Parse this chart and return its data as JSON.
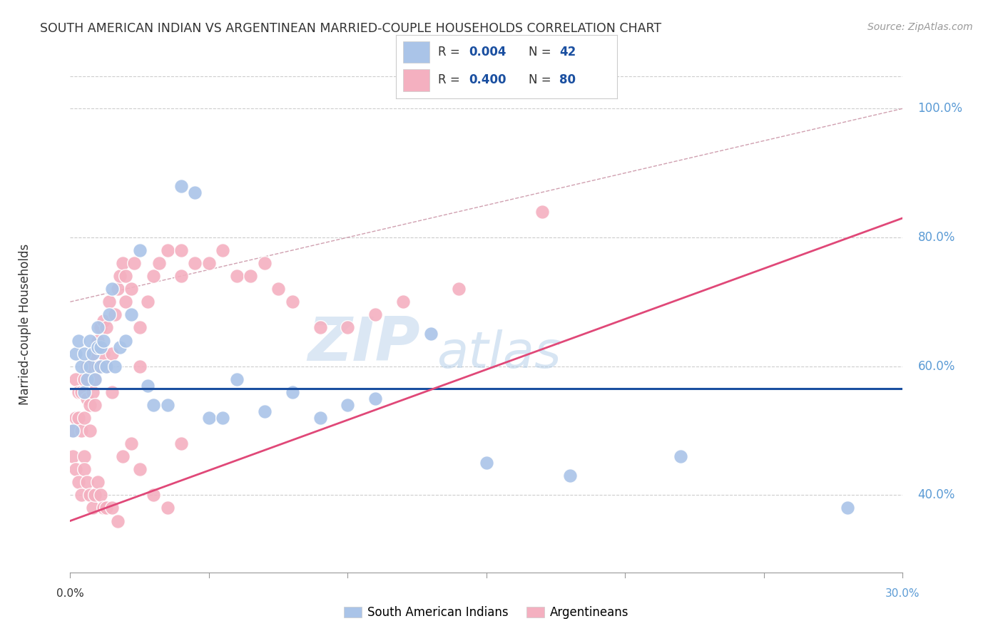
{
  "title": "SOUTH AMERICAN INDIAN VS ARGENTINEAN MARRIED-COUPLE HOUSEHOLDS CORRELATION CHART",
  "source": "Source: ZipAtlas.com",
  "ylabel": "Married-couple Households",
  "watermark_zip": "ZIP",
  "watermark_atlas": "atlas",
  "blue_color": "#aac4e8",
  "pink_color": "#f4b0c0",
  "blue_line_color": "#1a4fa0",
  "pink_line_color": "#e04878",
  "diag_line_color": "#d0a0b0",
  "x_min": 0.0,
  "x_max": 0.3,
  "y_min": 0.28,
  "y_max": 1.05,
  "yticks": [
    0.4,
    0.6,
    0.8,
    1.0
  ],
  "xtick_labels_pos": [
    0.0,
    0.05,
    0.1,
    0.15,
    0.2,
    0.25,
    0.3
  ],
  "blue_line_y": 0.565,
  "pink_line_x": [
    0.0,
    0.3
  ],
  "pink_line_y": [
    0.36,
    0.83
  ],
  "diag_line_x": [
    0.0,
    0.3
  ],
  "diag_line_y": [
    0.7,
    1.0
  ],
  "blue_scatter_x": [
    0.001,
    0.002,
    0.003,
    0.004,
    0.005,
    0.005,
    0.006,
    0.007,
    0.007,
    0.008,
    0.009,
    0.01,
    0.01,
    0.011,
    0.011,
    0.012,
    0.013,
    0.014,
    0.015,
    0.016,
    0.018,
    0.02,
    0.022,
    0.025,
    0.028,
    0.03,
    0.035,
    0.04,
    0.045,
    0.05,
    0.055,
    0.06,
    0.07,
    0.08,
    0.09,
    0.1,
    0.11,
    0.13,
    0.15,
    0.18,
    0.22,
    0.28
  ],
  "blue_scatter_y": [
    0.5,
    0.62,
    0.64,
    0.6,
    0.62,
    0.56,
    0.58,
    0.6,
    0.64,
    0.62,
    0.58,
    0.63,
    0.66,
    0.63,
    0.6,
    0.64,
    0.6,
    0.68,
    0.72,
    0.6,
    0.63,
    0.64,
    0.68,
    0.78,
    0.57,
    0.54,
    0.54,
    0.88,
    0.87,
    0.52,
    0.52,
    0.58,
    0.53,
    0.56,
    0.52,
    0.54,
    0.55,
    0.65,
    0.45,
    0.43,
    0.46,
    0.38
  ],
  "pink_scatter_x": [
    0.001,
    0.001,
    0.002,
    0.002,
    0.003,
    0.003,
    0.004,
    0.004,
    0.005,
    0.005,
    0.005,
    0.006,
    0.006,
    0.007,
    0.007,
    0.008,
    0.008,
    0.009,
    0.009,
    0.01,
    0.01,
    0.011,
    0.011,
    0.012,
    0.012,
    0.013,
    0.013,
    0.014,
    0.015,
    0.015,
    0.016,
    0.017,
    0.018,
    0.019,
    0.02,
    0.02,
    0.022,
    0.023,
    0.025,
    0.025,
    0.028,
    0.03,
    0.032,
    0.035,
    0.04,
    0.04,
    0.045,
    0.05,
    0.055,
    0.06,
    0.065,
    0.07,
    0.075,
    0.08,
    0.09,
    0.1,
    0.11,
    0.12,
    0.14,
    0.17,
    0.002,
    0.003,
    0.004,
    0.005,
    0.006,
    0.007,
    0.008,
    0.009,
    0.01,
    0.011,
    0.012,
    0.013,
    0.015,
    0.017,
    0.019,
    0.022,
    0.025,
    0.03,
    0.035,
    0.04
  ],
  "pink_scatter_y": [
    0.5,
    0.46,
    0.52,
    0.58,
    0.52,
    0.56,
    0.5,
    0.56,
    0.46,
    0.52,
    0.58,
    0.55,
    0.6,
    0.5,
    0.54,
    0.56,
    0.62,
    0.54,
    0.58,
    0.6,
    0.64,
    0.6,
    0.66,
    0.62,
    0.67,
    0.6,
    0.66,
    0.7,
    0.56,
    0.62,
    0.68,
    0.72,
    0.74,
    0.76,
    0.7,
    0.74,
    0.72,
    0.76,
    0.6,
    0.66,
    0.7,
    0.74,
    0.76,
    0.78,
    0.74,
    0.78,
    0.76,
    0.76,
    0.78,
    0.74,
    0.74,
    0.76,
    0.72,
    0.7,
    0.66,
    0.66,
    0.68,
    0.7,
    0.72,
    0.84,
    0.44,
    0.42,
    0.4,
    0.44,
    0.42,
    0.4,
    0.38,
    0.4,
    0.42,
    0.4,
    0.38,
    0.38,
    0.38,
    0.36,
    0.46,
    0.48,
    0.44,
    0.4,
    0.38,
    0.48
  ],
  "legend_r1": "R = 0.004",
  "legend_n1": "N = 42",
  "legend_r2": "R = 0.400",
  "legend_n2": "N = 80",
  "legend_label1": "South American Indians",
  "legend_label2": "Argentineans"
}
